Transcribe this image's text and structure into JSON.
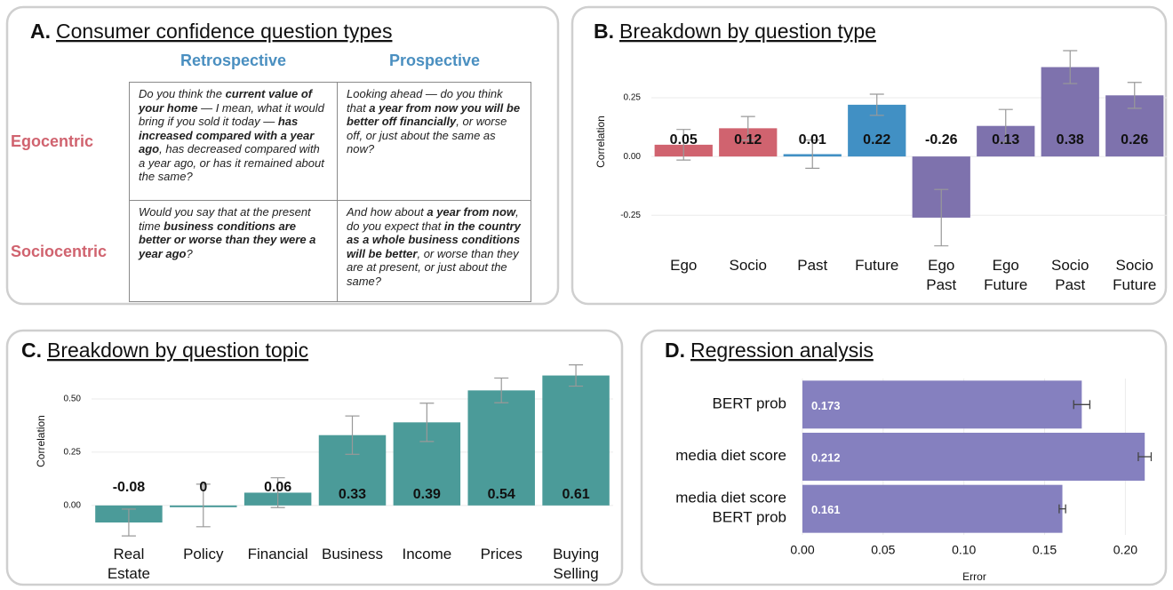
{
  "panel_a": {
    "label": "A.",
    "title": "Consumer confidence question types",
    "columns": [
      "Retrospective",
      "Prospective"
    ],
    "rows": [
      {
        "label": "Egocentric",
        "cells": [
          [
            {
              "text": "Do you think the ",
              "bold": false
            },
            {
              "text": "current value of your home",
              "bold": true
            },
            {
              "text": " — I mean, what it would bring if you sold it today — ",
              "bold": false
            },
            {
              "text": "has increased compared with a year ago",
              "bold": true
            },
            {
              "text": ", has decreased compared with a year ago, or has it remained about the same?",
              "bold": false
            }
          ],
          [
            {
              "text": "Looking ahead — do you think that ",
              "bold": false
            },
            {
              "text": "a year from now you will be better off financially",
              "bold": true
            },
            {
              "text": ", or worse off, or just about the same as now?",
              "bold": false
            }
          ]
        ]
      },
      {
        "label": "Sociocentric",
        "cells": [
          [
            {
              "text": "Would you say that at the present time ",
              "bold": false
            },
            {
              "text": "business conditions are better or worse than they were a year ago",
              "bold": true
            },
            {
              "text": "?",
              "bold": false
            }
          ],
          [
            {
              "text": "And how about ",
              "bold": false
            },
            {
              "text": "a year from now",
              "bold": true
            },
            {
              "text": ", do you expect that ",
              "bold": false
            },
            {
              "text": "in the country as a whole business conditions will be better",
              "bold": true
            },
            {
              "text": ", or worse than they are at present, or just about the same?",
              "bold": false
            }
          ]
        ]
      }
    ]
  },
  "chart_data": [
    {
      "type": "bar",
      "label": "B.",
      "title": "Breakdown by question type",
      "ylabel": "Correlation",
      "categories": [
        "Ego",
        "Socio",
        "Past",
        "Future",
        "Ego\nPast",
        "Ego\nFuture",
        "Socio\nPast",
        "Socio\nFuture"
      ],
      "values": [
        0.05,
        0.12,
        0.01,
        0.22,
        -0.26,
        0.13,
        0.38,
        0.26
      ],
      "errors": [
        0.065,
        0.05,
        0.06,
        0.045,
        0.12,
        0.07,
        0.07,
        0.055
      ],
      "colors": [
        "#d0636f",
        "#d0636f",
        "#4190c4",
        "#4190c4",
        "#7e72ad",
        "#7e72ad",
        "#7e72ad",
        "#7e72ad"
      ],
      "ylim": [
        -0.4,
        0.45
      ],
      "yticks": [
        -0.25,
        {
          "value": 0,
          "label": "0.00"
        },
        0.25
      ],
      "grid": true
    },
    {
      "type": "bar",
      "label": "C.",
      "title": "Breakdown by question topic",
      "ylabel": "Correlation",
      "categories": [
        "Real\nEstate",
        "Policy",
        "Financial",
        "Business",
        "Income",
        "Prices",
        "Buying\nSelling"
      ],
      "values": [
        -0.08,
        0,
        0.06,
        0.33,
        0.39,
        0.54,
        0.61
      ],
      "errors": [
        0.063,
        0.1,
        0.07,
        0.09,
        0.09,
        0.058,
        0.05
      ],
      "colors": [
        "#4b9b99",
        "#4b9b99",
        "#4b9b99",
        "#4b9b99",
        "#4b9b99",
        "#4b9b99",
        "#4b9b99"
      ],
      "ylim": [
        -0.18,
        0.7
      ],
      "yticks": [
        {
          "value": 0,
          "label": "0.00"
        },
        0.25,
        {
          "value": 0.5,
          "label": "0.50"
        }
      ],
      "grid": true
    },
    {
      "type": "barh",
      "label": "D.",
      "title": "Regression analysis",
      "xlabel": "Error",
      "categories": [
        "BERT prob",
        "media diet score",
        "media diet score\nBERT prob"
      ],
      "values": [
        0.173,
        0.212,
        0.161
      ],
      "errors": [
        0.005,
        0.004,
        0.002
      ],
      "color": "#8580bf",
      "xlim": [
        0,
        0.224
      ],
      "xticks": [
        {
          "value": 0,
          "label": "0.00"
        },
        0.05,
        {
          "value": 0.1,
          "label": "0.10"
        },
        0.15,
        {
          "value": 0.2,
          "label": "0.20"
        }
      ],
      "grid": true
    }
  ]
}
